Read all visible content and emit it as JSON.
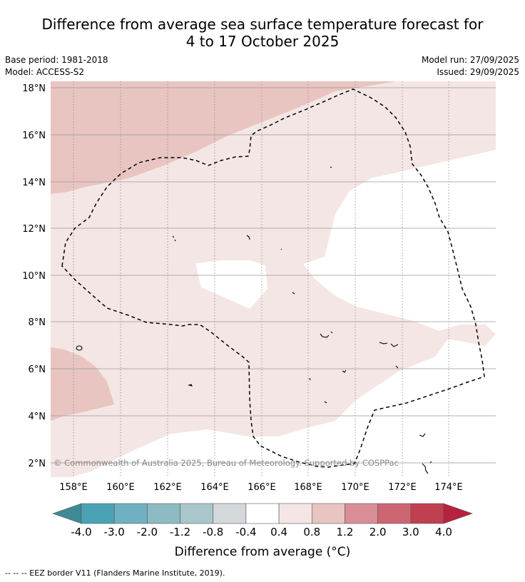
{
  "title_line1": "Difference from average sea surface temperature forecast for",
  "title_line2": "4 to 17 October 2025",
  "base_period": "Base period: 1981-2018",
  "model": "Model: ACCESS-S2",
  "model_run": "Model run: 27/09/2025",
  "issued": "Issued: 29/09/2025",
  "copyright": "© Commonwealth of Australia 2025, Bureau of Meteorology. Supported by COSPPac",
  "lat_labels": [
    "18°N",
    "16°N",
    "14°N",
    "12°N",
    "10°N",
    "8°N",
    "6°N",
    "4°N",
    "2°N"
  ],
  "lon_labels": [
    "158°E",
    "160°E",
    "162°E",
    "164°E",
    "166°E",
    "168°E",
    "170°E",
    "172°E",
    "174°E"
  ],
  "colorbar": {
    "ticks": [
      "-4.0",
      "-3.0",
      "-2.0",
      "-1.2",
      "-0.8",
      "-0.4",
      "0.4",
      "0.8",
      "1.2",
      "2.0",
      "3.0",
      "4.0"
    ],
    "colors": [
      "#3e8a96",
      "#4aa3b4",
      "#6fb1c0",
      "#8ebac4",
      "#a9c7ca",
      "#d3d8da",
      "#ffffff",
      "#f4e6e4",
      "#e8c5c1",
      "#d98e98",
      "#cc6672",
      "#c0404f",
      "#b5223d"
    ],
    "label": "Difference from average (°C)"
  },
  "footnote": "--  --  -- EEZ border V11 (Flanders Marine Institute, 2019).",
  "fill_colors": {
    "light": "#f4e6e4",
    "medium": "#e8c5c1"
  }
}
